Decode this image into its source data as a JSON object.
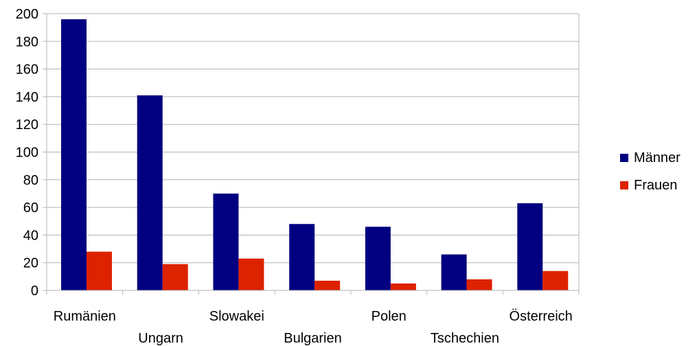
{
  "chart_data": {
    "type": "bar",
    "title": "",
    "xlabel": "",
    "ylabel": "",
    "categories": [
      "Rumänien",
      "Ungarn",
      "Slowakei",
      "Bulgarien",
      "Polen",
      "Tschechien",
      "Österreich"
    ],
    "series": [
      {
        "name": "Männer",
        "color": "#000080",
        "values": [
          196,
          141,
          70,
          48,
          46,
          26,
          63
        ]
      },
      {
        "name": "Frauen",
        "color": "#dd2200",
        "values": [
          28,
          19,
          23,
          7,
          5,
          8,
          14
        ]
      }
    ],
    "ylim": [
      0,
      200
    ],
    "yticks": [
      "0",
      "20",
      "40",
      "60",
      "80",
      "100",
      "120",
      "140",
      "160",
      "180",
      "200"
    ],
    "grid": true,
    "legend_position": "right"
  }
}
